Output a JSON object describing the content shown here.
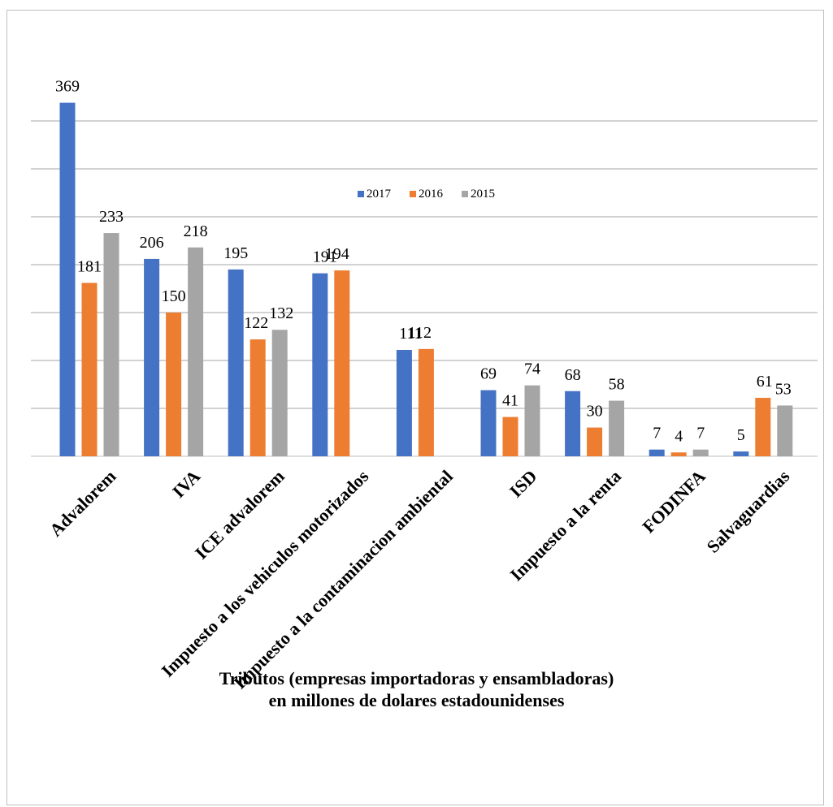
{
  "chart_data": {
    "type": "bar",
    "categories": [
      "Advalorem",
      "IVA",
      "ICE advalorem",
      "Impuesto a los vehiculos motorizados",
      "Impuesto a la contaminacion ambiental",
      "ISD",
      "Impuesto a la renta",
      "FODINFA",
      "Salvaguardias"
    ],
    "series": [
      {
        "name": "2017",
        "color": "#4472c4",
        "values": [
          369,
          206,
          195,
          191,
          111,
          69,
          68,
          7,
          5
        ]
      },
      {
        "name": "2016",
        "color": "#ed7d31",
        "values": [
          181,
          150,
          122,
          194,
          112,
          41,
          30,
          4,
          61
        ]
      },
      {
        "name": "2015",
        "color": "#a5a5a5",
        "values": [
          233,
          218,
          132,
          null,
          null,
          74,
          58,
          7,
          53
        ]
      }
    ],
    "data_labels": [
      [
        "369",
        "206",
        "195",
        "191",
        "111",
        "69",
        "68",
        "7",
        "5"
      ],
      [
        "181",
        "150",
        "122",
        "194",
        "112",
        "41",
        "30",
        "4",
        "61"
      ],
      [
        "233",
        "218",
        "132",
        "",
        "",
        "74",
        "58",
        "7",
        "53"
      ]
    ],
    "ylim": [
      0,
      400
    ],
    "grid": true,
    "legend_position": "top-center",
    "xlabel_lines": [
      "Tributos (empresas importadoras y ensambladoras)",
      "en millones de dolares estadounidenses"
    ]
  }
}
